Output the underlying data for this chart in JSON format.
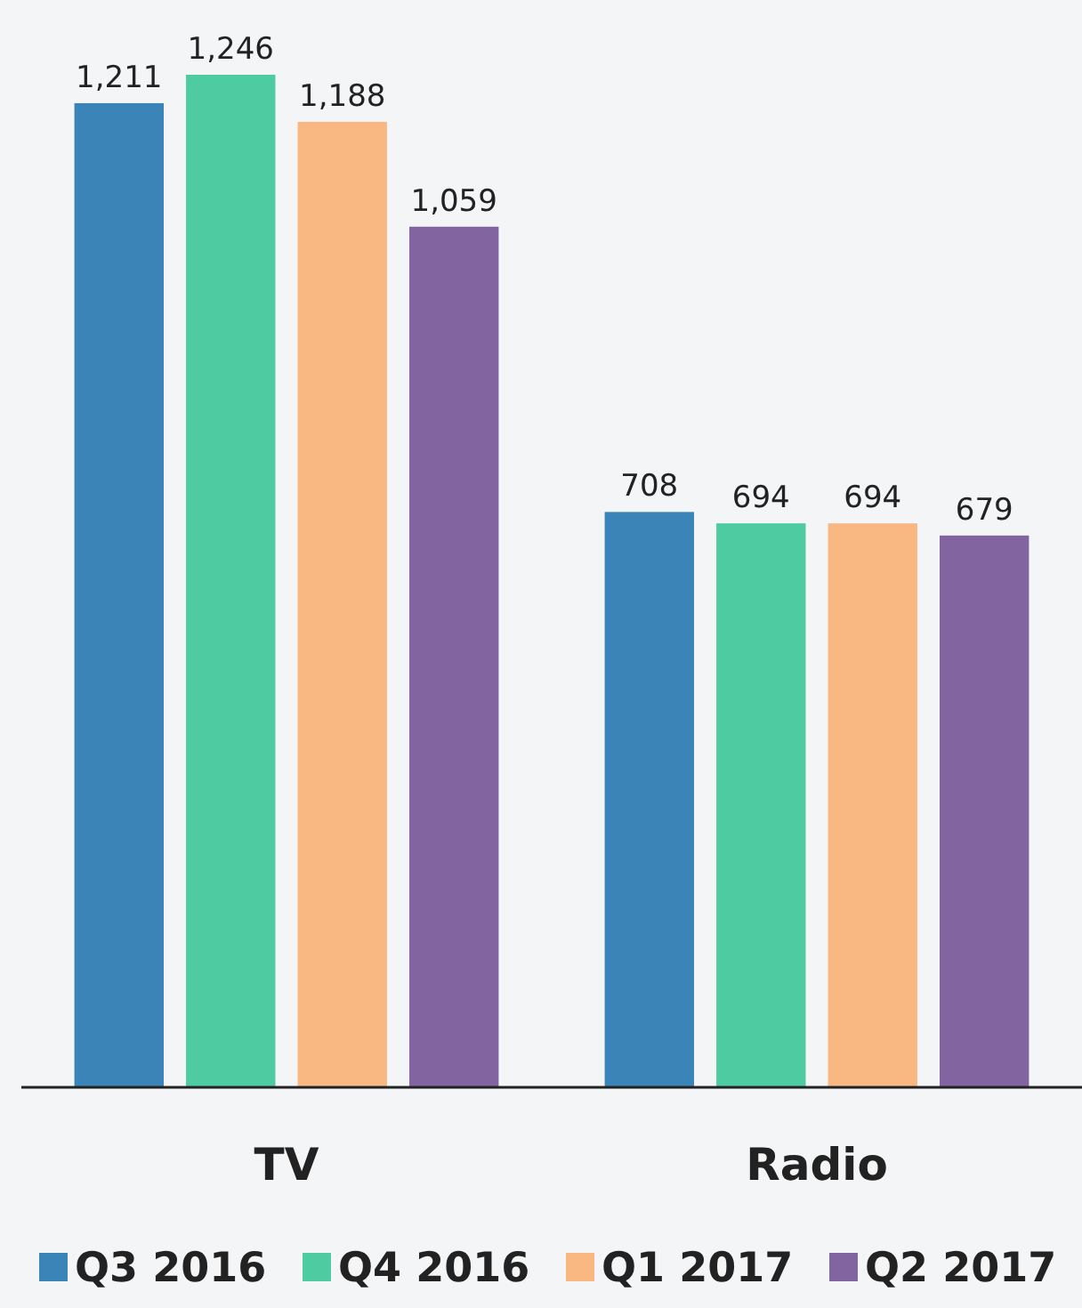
{
  "chart_data": {
    "type": "bar",
    "categories": [
      "TV",
      "Radio"
    ],
    "series": [
      {
        "name": "Q3 2016",
        "color": "#3a84b8",
        "values": [
          1211,
          708
        ],
        "value_labels": [
          "1,211",
          "708"
        ]
      },
      {
        "name": "Q4 2016",
        "color": "#4ecba0",
        "values": [
          1246,
          694
        ],
        "value_labels": [
          "1,246",
          "694"
        ]
      },
      {
        "name": "Q1 2017",
        "color": "#f9b882",
        "values": [
          1188,
          694
        ],
        "value_labels": [
          "1,188",
          "694"
        ]
      },
      {
        "name": "Q2 2017",
        "color": "#8264a0",
        "values": [
          1059,
          679
        ],
        "value_labels": [
          "1,059",
          "679"
        ]
      }
    ],
    "legend": "bottom",
    "grid": false
  }
}
